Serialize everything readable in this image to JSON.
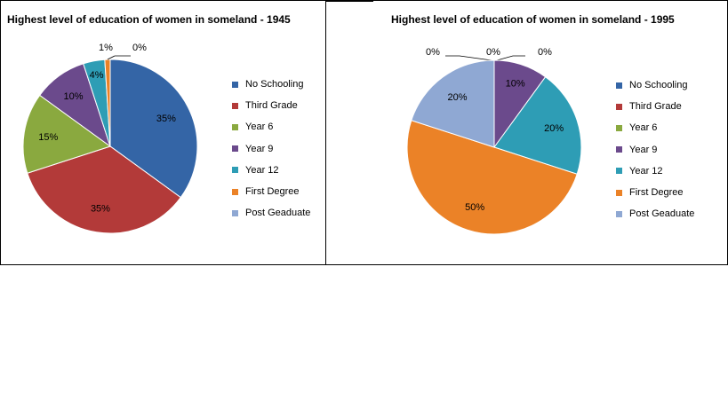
{
  "colors": [
    "#3465A6",
    "#B33A39",
    "#8AA93F",
    "#6B4A8C",
    "#2E9DB5",
    "#EB8227",
    "#8FA8D3"
  ],
  "chart_data": [
    {
      "type": "pie",
      "title": "Highest level of education of women in someland - 1945",
      "categories": [
        "No Schooling",
        "Third Grade",
        "Year 6",
        "Year 9",
        "Year 12",
        "First Degree",
        "Post Geaduate"
      ],
      "values": [
        35,
        35,
        15,
        10,
        4,
        1,
        0
      ],
      "labels": [
        "35%",
        "35%",
        "15%",
        "10%",
        "4%",
        "1%",
        "0%"
      ],
      "legend": "right"
    },
    {
      "type": "pie",
      "title": "Highest level of education of women in someland - 1995",
      "categories": [
        "No Schooling",
        "Third Grade",
        "Year 6",
        "Year 9",
        "Year 12",
        "First Degree",
        "Post Geaduate"
      ],
      "values": [
        0,
        0,
        0,
        10,
        20,
        50,
        20
      ],
      "labels": [
        "0%",
        "0%",
        "0%",
        "10%",
        "20%",
        "50%",
        "20%"
      ],
      "legend": "right"
    }
  ]
}
